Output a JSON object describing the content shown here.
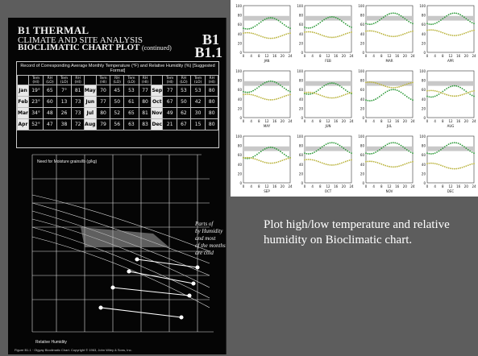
{
  "scan": {
    "title": "B1 THERMAL",
    "subtitle1": "CLIMATE AND SITE ANALYSIS",
    "subtitle2": "BIOCLIMATIC CHART PLOT",
    "subtitle2_cont": "(continued)",
    "code1": "B1",
    "code2": "B1.1",
    "table_caption": "Record of Corresponding Average Monthly Temperature (°F) and Relative Humidity (%) [Suggested Format]",
    "col_headers": [
      "Tem (HI)",
      "RH (LO)",
      "Tem (LO)",
      "RH (HI)"
    ],
    "rows": [
      {
        "m1": "Jan",
        "v1": [
          "19°",
          "65",
          "7°",
          "81"
        ],
        "m2": "May",
        "v2": [
          "70",
          "45",
          "53",
          "77"
        ],
        "m3": "Sep",
        "v3": [
          "77",
          "53",
          "53",
          "80"
        ]
      },
      {
        "m1": "Feb",
        "v1": [
          "23°",
          "60",
          "13",
          "73"
        ],
        "m2": "Jun",
        "v2": [
          "77",
          "50",
          "61",
          "80"
        ],
        "m3": "Oct",
        "v3": [
          "67",
          "50",
          "42",
          "80"
        ]
      },
      {
        "m1": "Mar",
        "v1": [
          "34°",
          "48",
          "26",
          "73"
        ],
        "m2": "Jul",
        "v2": [
          "80",
          "52",
          "65",
          "81"
        ],
        "m3": "Nov",
        "v3": [
          "49",
          "62",
          "30",
          "80"
        ]
      },
      {
        "m1": "Apr",
        "v1": [
          "52°",
          "47",
          "38",
          "72"
        ],
        "m2": "Aug",
        "v2": [
          "79",
          "56",
          "63",
          "83"
        ],
        "m3": "Dec",
        "v3": [
          "21",
          "67",
          "15",
          "80"
        ]
      }
    ],
    "handwritten_note": "Note: if humidity and most of the months are cold",
    "footer": "Figure B1.1 · Olgyay Bioclimatic Chart. Copyright © 1963, John Wiley & Sons, Inc."
  },
  "grid": {
    "months": [
      "JAN",
      "FEB",
      "MAR",
      "APR",
      "MAY",
      "JUN",
      "JUL",
      "AUG",
      "SEP",
      "OCT",
      "NOV",
      "DEC"
    ],
    "y_ticks": [
      "100",
      "80",
      "60",
      "40",
      "20",
      "0"
    ],
    "x_ticks": [
      "0",
      "4",
      "8",
      "12",
      "16",
      "20",
      "24"
    ],
    "colors": {
      "humidity": "#2e9a3a",
      "temperature": "#b9b23a",
      "band": "#c8c8c8"
    }
  },
  "caption": "Plot high/low temperature and relative humidity on Bioclimatic chart."
}
